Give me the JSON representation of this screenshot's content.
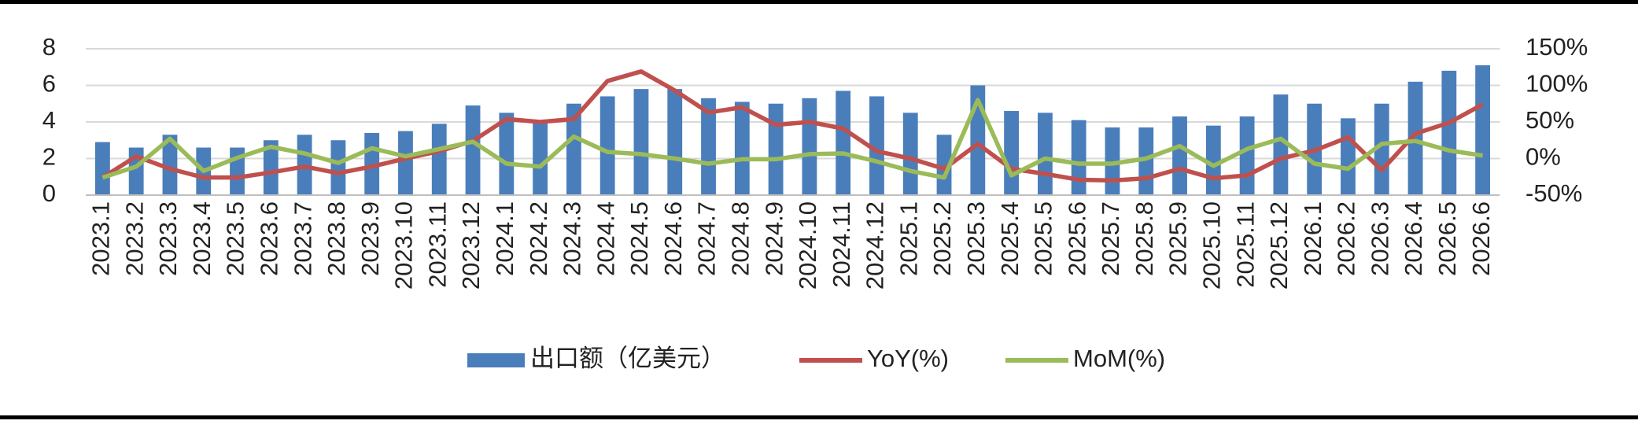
{
  "chart_data": {
    "type": "combo",
    "categories": [
      "2023.1",
      "2023.2",
      "2023.3",
      "2023.4",
      "2023.5",
      "2023.6",
      "2023.7",
      "2023.8",
      "2023.9",
      "2023.10",
      "2023.11",
      "2023.12",
      "2024.1",
      "2024.2",
      "2024.3",
      "2024.4",
      "2024.5",
      "2024.6",
      "2024.7",
      "2024.8",
      "2024.9",
      "2024.10",
      "2024.11",
      "2024.12",
      "2025.1",
      "2025.2",
      "2025.3",
      "2025.4",
      "2025.5",
      "2025.6",
      "2025.7",
      "2025.8",
      "2025.9",
      "2025.10",
      "2025.11",
      "2025.12",
      "2026.1",
      "2026.2",
      "2026.3",
      "2026.4",
      "2026.5",
      "2026.6"
    ],
    "series": [
      {
        "name": "出口额（亿美元）",
        "type": "bar",
        "color": "#4a7ebb",
        "values": [
          2.9,
          2.6,
          3.3,
          2.6,
          2.6,
          3.0,
          3.3,
          3.0,
          3.4,
          3.5,
          3.9,
          4.9,
          4.5,
          4.1,
          5.0,
          5.4,
          5.8,
          5.8,
          5.3,
          5.1,
          5.0,
          5.3,
          5.7,
          5.4,
          4.5,
          3.3,
          6.0,
          4.6,
          4.5,
          4.1,
          3.7,
          3.7,
          4.3,
          3.8,
          4.3,
          5.5,
          5.0,
          4.2,
          5.0,
          6.2,
          6.8,
          7.1
        ]
      },
      {
        "name": "YoY(%)",
        "type": "line",
        "axis": "y2",
        "color": "#c0504d",
        "values": [
          -26,
          3,
          -14,
          -26,
          -26,
          -19,
          -11,
          -20,
          -11,
          0,
          10,
          24,
          54,
          50,
          54,
          106,
          119,
          93,
          63,
          70,
          46,
          50,
          41,
          10,
          0,
          -14,
          20,
          -14,
          -21,
          -29,
          -30,
          -27,
          -14,
          -27,
          -23,
          0,
          11,
          29,
          -16,
          34,
          49,
          74
        ]
      },
      {
        "name": "MoM(%)",
        "type": "line",
        "axis": "y2",
        "color": "#9bbb59",
        "values": [
          -26,
          -11,
          27,
          -17,
          1,
          16,
          7,
          -6,
          14,
          3,
          13,
          23,
          -7,
          -11,
          30,
          9,
          6,
          0,
          -7,
          -1,
          -1,
          6,
          7,
          -4,
          -17,
          -26,
          80,
          -23,
          0,
          -7,
          -7,
          0,
          17,
          -10,
          13,
          27,
          -7,
          -14,
          20,
          24,
          11,
          4
        ]
      }
    ],
    "ylim": [
      0,
      8
    ],
    "yticks": [
      0,
      2,
      4,
      6,
      8
    ],
    "y2lim": [
      -50,
      150
    ],
    "y2ticks": [
      {
        "value": -50,
        "label": "-50%"
      },
      {
        "value": 0,
        "label": "0%"
      },
      {
        "value": 50,
        "label": "50%"
      },
      {
        "value": 100,
        "label": "100%"
      },
      {
        "value": 150,
        "label": "150%"
      }
    ],
    "grid": true
  }
}
